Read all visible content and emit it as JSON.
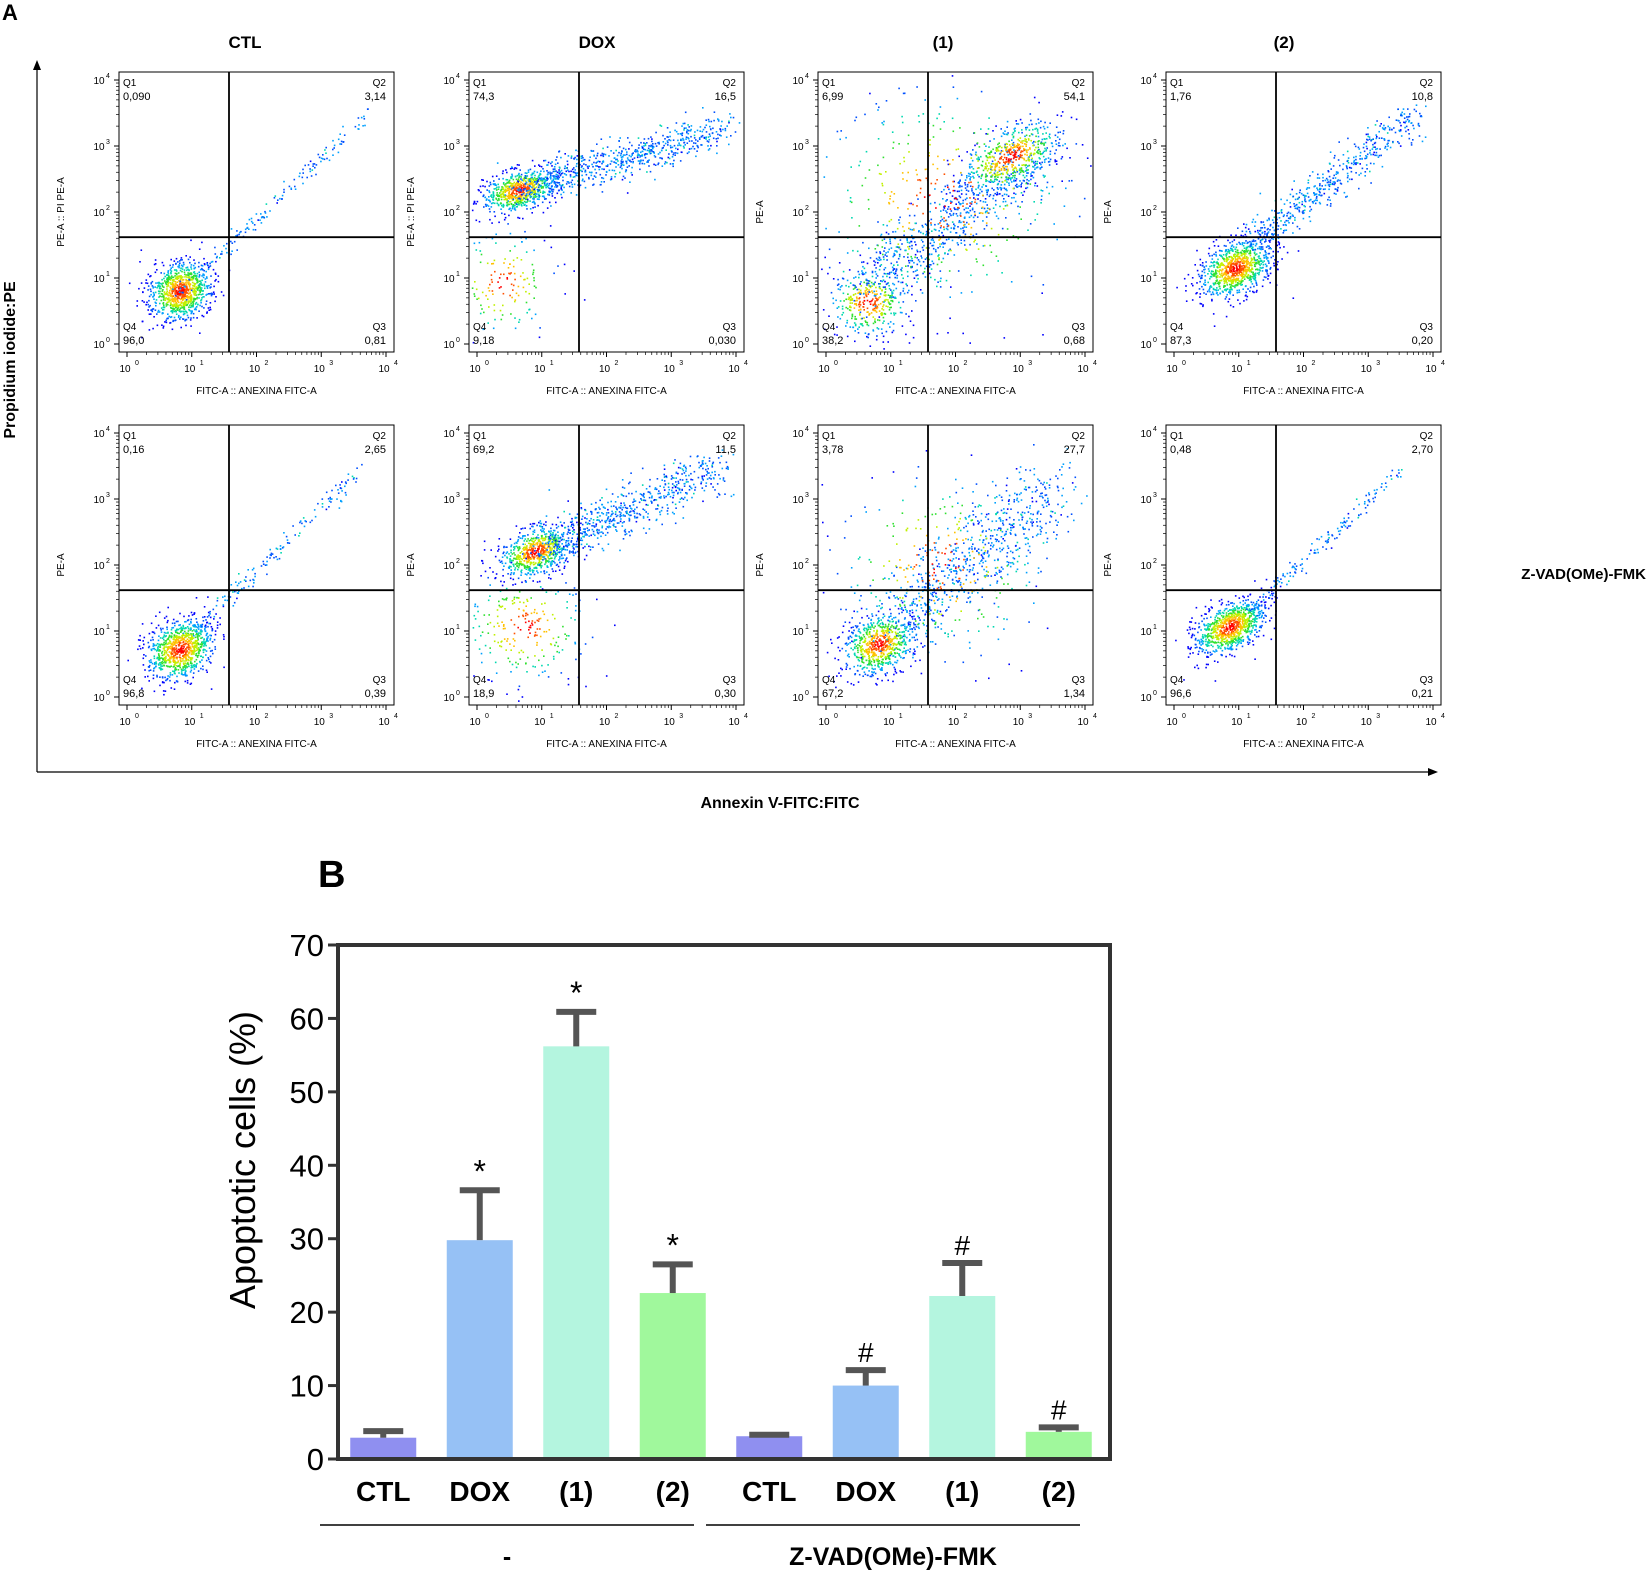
{
  "panel_a": {
    "label": "A",
    "columns": [
      "CTL",
      "DOX",
      "(1)",
      "(2)"
    ],
    "row_label": "Z-VAD(OMe)-FMK",
    "y_axis_title": "Propidium iodide:PE",
    "x_axis_title": "Annexin V-FITC:FITC",
    "plot_xlabel": "FITC-A :: ANEXINA FITC-A",
    "quadrant_names": [
      "Q1",
      "Q2",
      "Q3",
      "Q4"
    ],
    "tick_labels": [
      "10",
      "10",
      "10",
      "10",
      "10"
    ],
    "tick_exponents": [
      "0",
      "1",
      "2",
      "3",
      "4"
    ],
    "plots": [
      {
        "row": 0,
        "col": 0,
        "ylabel": "PE-A :: PI PE-A",
        "q1": "0,090",
        "q2": "3,14",
        "q3": "0,81",
        "q4": "96,0"
      },
      {
        "row": 0,
        "col": 1,
        "ylabel": "PE-A :: PI PE-A",
        "q1": "74,3",
        "q2": "16,5",
        "q3": "0,030",
        "q4": "9,18"
      },
      {
        "row": 0,
        "col": 2,
        "ylabel": "PE-A",
        "q1": "6,99",
        "q2": "54,1",
        "q3": "0,68",
        "q4": "38,2"
      },
      {
        "row": 0,
        "col": 3,
        "ylabel": "PE-A",
        "q1": "1,76",
        "q2": "10,8",
        "q3": "0,20",
        "q4": "87,3"
      },
      {
        "row": 1,
        "col": 0,
        "ylabel": "PE-A",
        "q1": "0,16",
        "q2": "2,65",
        "q3": "0,39",
        "q4": "96,8"
      },
      {
        "row": 1,
        "col": 1,
        "ylabel": "PE-A",
        "q1": "69,2",
        "q2": "11,5",
        "q3": "0,30",
        "q4": "18,9"
      },
      {
        "row": 1,
        "col": 2,
        "ylabel": "PE-A",
        "q1": "3,78",
        "q2": "27,7",
        "q3": "1,34",
        "q4": "67,2"
      },
      {
        "row": 1,
        "col": 3,
        "ylabel": "PE-A",
        "q1": "0,48",
        "q2": "2,70",
        "q3": "0,21",
        "q4": "96,6"
      }
    ]
  },
  "panel_b": {
    "label": "B"
  },
  "chart_data": {
    "type": "bar",
    "title": "",
    "ylabel": "Apoptotic cells (%)",
    "xlabel": "",
    "ylim": [
      0,
      70
    ],
    "yticks": [
      0,
      10,
      20,
      30,
      40,
      50,
      60,
      70
    ],
    "categories": [
      "CTL",
      "DOX",
      "(1)",
      "(2)",
      "CTL",
      "DOX",
      "(1)",
      "(2)"
    ],
    "values": [
      2.9,
      29.8,
      56.2,
      22.6,
      3.1,
      10.0,
      22.2,
      3.7
    ],
    "errors": [
      0.9,
      6.8,
      4.7,
      3.9,
      0.2,
      2.1,
      4.5,
      0.6
    ],
    "annotations": [
      "",
      "*",
      "*",
      "*",
      "",
      "#",
      "#",
      "#"
    ],
    "bar_colors": [
      "#8f8ff0",
      "#96c1f5",
      "#b4f5df",
      "#a0f89c",
      "#8f8ff0",
      "#96c1f5",
      "#b4f5df",
      "#a0f89c"
    ],
    "groups": [
      {
        "label": "-",
        "start": 0,
        "end": 3
      },
      {
        "label": "Z-VAD(OMe)-FMK",
        "start": 4,
        "end": 7
      }
    ]
  }
}
